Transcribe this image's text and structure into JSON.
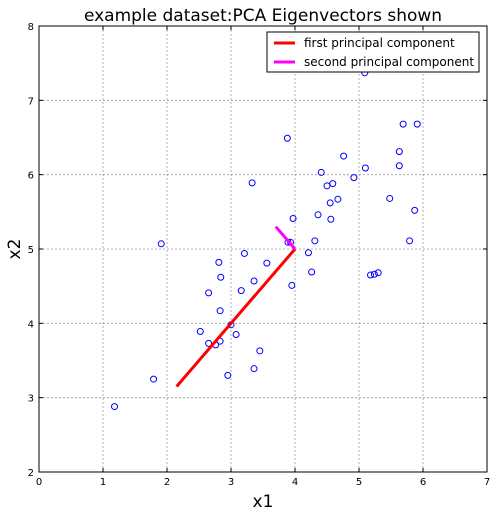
{
  "chart_data": {
    "type": "scatter",
    "title": "example dataset:PCA Eigenvectors shown",
    "xlabel": "x1",
    "ylabel": "x2",
    "xlim": [
      0,
      7
    ],
    "ylim": [
      2,
      8
    ],
    "xticks": [
      0,
      1,
      2,
      3,
      4,
      5,
      6,
      7
    ],
    "yticks": [
      2,
      3,
      4,
      5,
      6,
      7,
      8
    ],
    "grid": true,
    "legend_placement": "top-right",
    "marker_color": "#0000ff",
    "points": [
      [
        1.18,
        2.88
      ],
      [
        1.79,
        3.25
      ],
      [
        1.91,
        5.07
      ],
      [
        2.52,
        3.89
      ],
      [
        2.65,
        3.73
      ],
      [
        2.65,
        4.41
      ],
      [
        2.76,
        3.71
      ],
      [
        2.81,
        4.82
      ],
      [
        2.83,
        3.76
      ],
      [
        2.83,
        4.17
      ],
      [
        2.84,
        4.62
      ],
      [
        2.95,
        3.3
      ],
      [
        3.0,
        3.98
      ],
      [
        3.08,
        3.85
      ],
      [
        3.16,
        4.44
      ],
      [
        3.21,
        4.94
      ],
      [
        3.33,
        5.89
      ],
      [
        3.36,
        4.57
      ],
      [
        3.36,
        3.39
      ],
      [
        3.45,
        3.63
      ],
      [
        3.56,
        4.81
      ],
      [
        3.88,
        6.49
      ],
      [
        3.89,
        5.09
      ],
      [
        3.93,
        5.09
      ],
      [
        3.95,
        4.51
      ],
      [
        3.97,
        5.41
      ],
      [
        4.21,
        4.95
      ],
      [
        4.26,
        4.69
      ],
      [
        4.31,
        5.11
      ],
      [
        4.36,
        5.46
      ],
      [
        4.41,
        6.03
      ],
      [
        4.5,
        5.85
      ],
      [
        4.55,
        5.62
      ],
      [
        4.56,
        5.4
      ],
      [
        4.59,
        5.88
      ],
      [
        4.67,
        5.67
      ],
      [
        4.76,
        6.25
      ],
      [
        4.92,
        5.96
      ],
      [
        5.09,
        7.37
      ],
      [
        5.1,
        6.09
      ],
      [
        5.18,
        4.65
      ],
      [
        5.24,
        4.66
      ],
      [
        5.3,
        4.68
      ],
      [
        5.48,
        5.68
      ],
      [
        5.63,
        6.31
      ],
      [
        5.63,
        6.12
      ],
      [
        5.69,
        6.68
      ],
      [
        5.79,
        5.11
      ],
      [
        5.87,
        5.52
      ],
      [
        5.91,
        6.68
      ]
    ],
    "series": [
      {
        "name": "first principal component",
        "color": "#ff0000",
        "x": [
          2.15,
          4.0
        ],
        "y": [
          3.15,
          5.0
        ]
      },
      {
        "name": "second principal component",
        "color": "#ff00ff",
        "x": [
          3.7,
          4.0
        ],
        "y": [
          5.3,
          5.0
        ]
      }
    ]
  }
}
